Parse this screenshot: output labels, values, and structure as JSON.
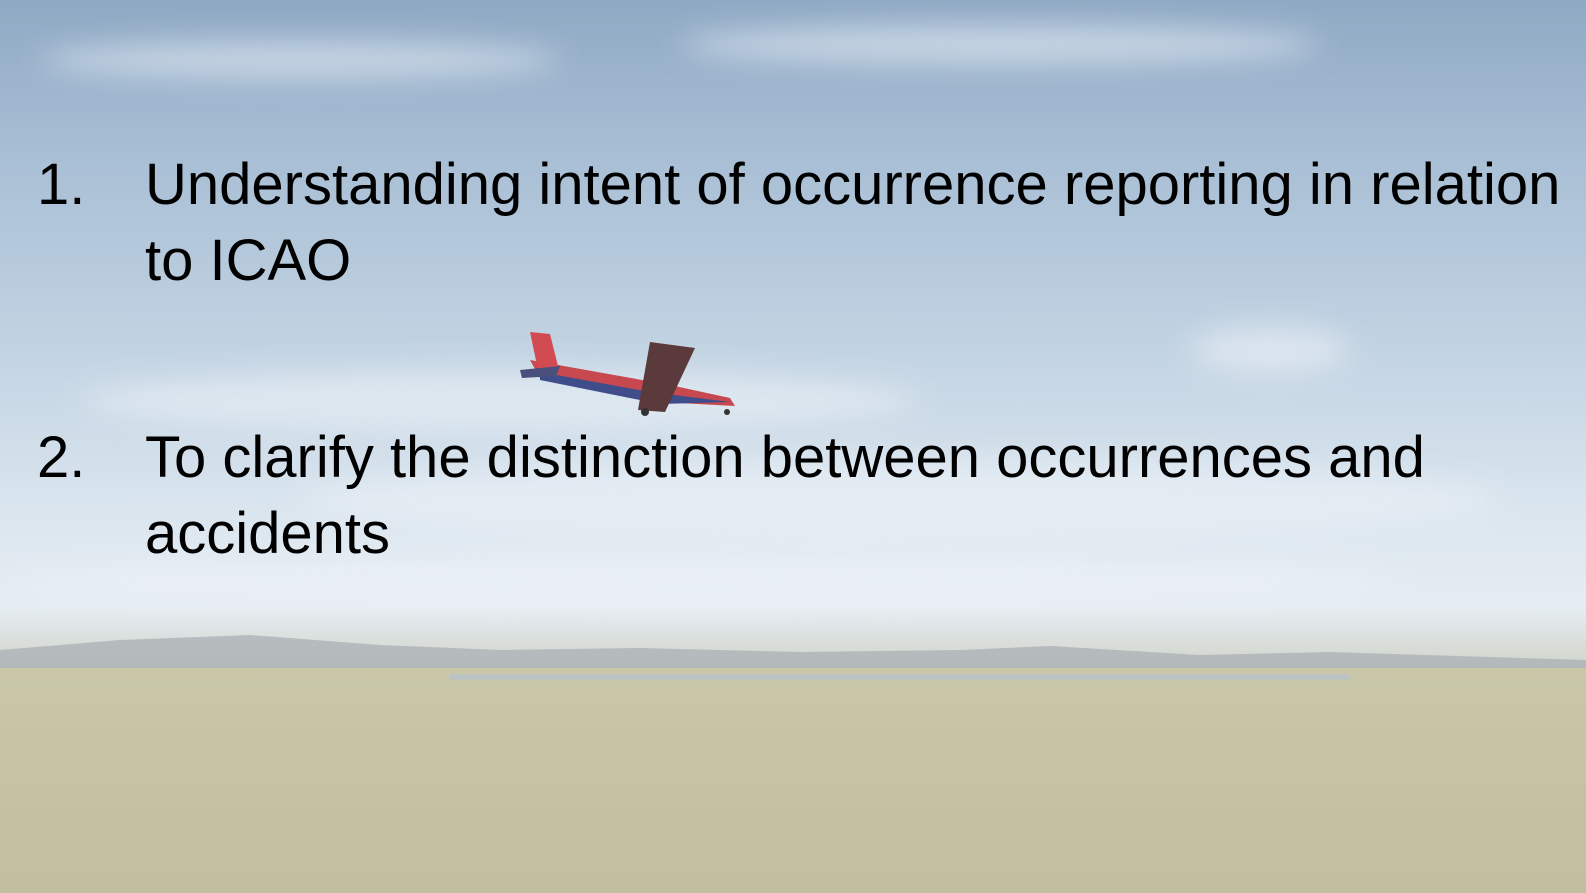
{
  "slide": {
    "items": [
      {
        "number": "1.",
        "text": "Understanding intent of occurrence reporting in relation to ICAO"
      },
      {
        "number": "2.",
        "text": "To clarify the distinction between occurrences and accidents"
      }
    ]
  }
}
